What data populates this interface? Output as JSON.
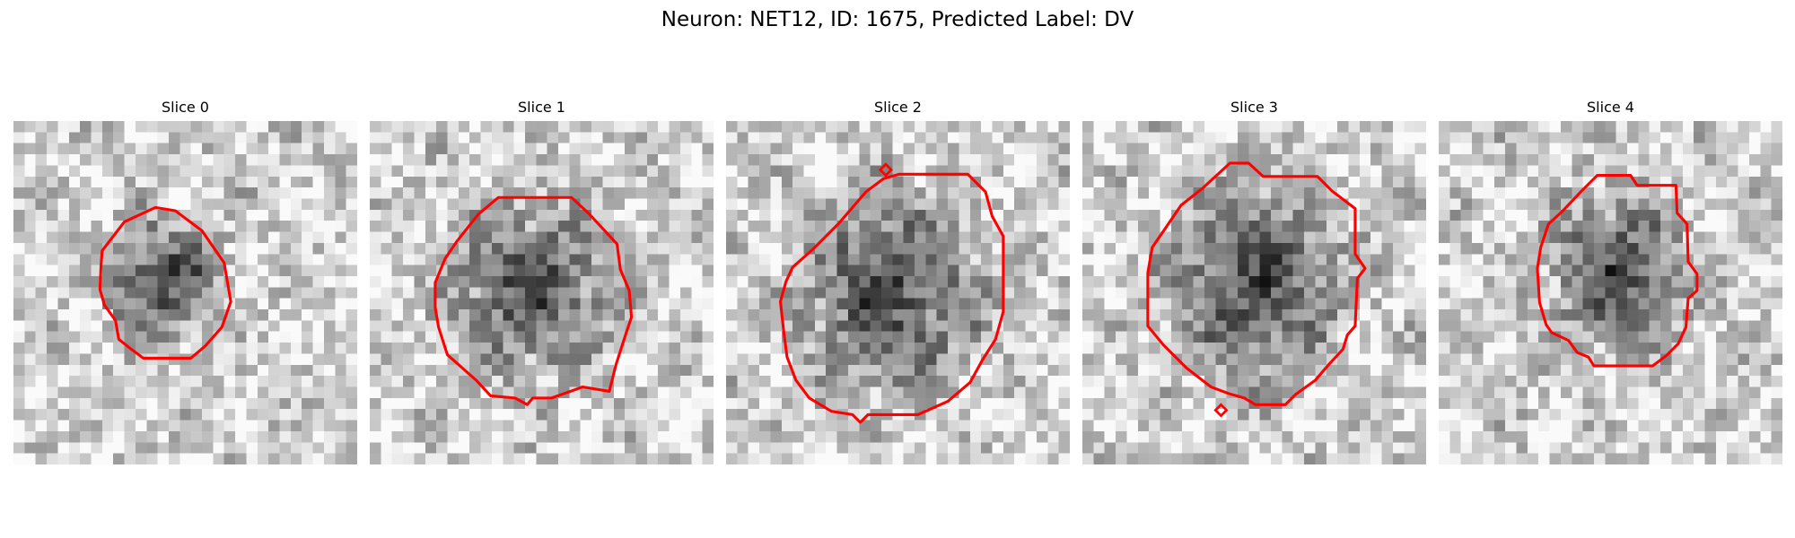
{
  "figure": {
    "title": "Neuron: NET12, ID: 1675, Predicted Label: DV"
  },
  "colors": {
    "contour": "#ff0000",
    "background": "#ffffff"
  },
  "slices": [
    {
      "label": "Slice 0"
    },
    {
      "label": "Slice 1"
    },
    {
      "label": "Slice 2"
    },
    {
      "label": "Slice 3"
    },
    {
      "label": "Slice 4"
    }
  ]
}
